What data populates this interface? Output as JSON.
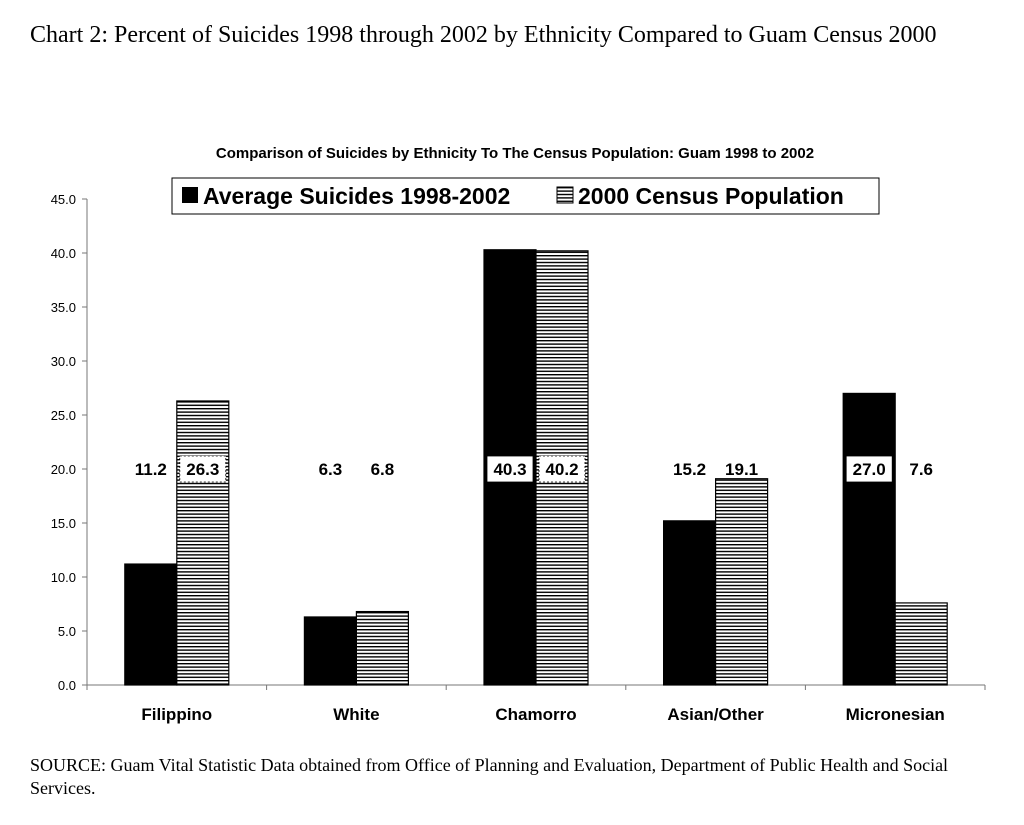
{
  "page": {
    "heading": "Chart 2: Percent of Suicides 1998 through 2002 by Ethnicity Compared to Guam Census 2000",
    "source": "SOURCE: Guam Vital Statistic Data obtained from Office of Planning and Evaluation, Department of Public Health and Social Services."
  },
  "chart_data": {
    "type": "bar",
    "title": "Comparison of Suicides by Ethnicity To The Census Population: Guam 1998 to 2002",
    "xlabel": "",
    "ylabel": "",
    "ylim": [
      0,
      45
    ],
    "yticks": [
      "0.0",
      "5.0",
      "10.0",
      "15.0",
      "20.0",
      "25.0",
      "30.0",
      "35.0",
      "40.0",
      "45.0"
    ],
    "categories": [
      "Filippino",
      "White",
      "Chamorro",
      "Asian/Other",
      "Micronesian"
    ],
    "series": [
      {
        "name": "Average Suicides 1998-2002",
        "values": [
          11.2,
          6.3,
          40.3,
          15.2,
          27.0
        ],
        "labels": [
          "11.2",
          "6.3",
          "40.3",
          "15.2",
          "27.0"
        ],
        "fill": "solid-black"
      },
      {
        "name": "2000 Census Population",
        "values": [
          26.3,
          6.8,
          40.2,
          19.1,
          7.6
        ],
        "labels": [
          "26.3",
          "6.8",
          "40.2",
          "19.1",
          "7.6"
        ],
        "fill": "horizontal-stripes"
      }
    ],
    "legend": "top",
    "grid": false,
    "colors": {
      "series1": "#000000",
      "series2_stripe": "#000000",
      "background": "#ffffff"
    }
  }
}
